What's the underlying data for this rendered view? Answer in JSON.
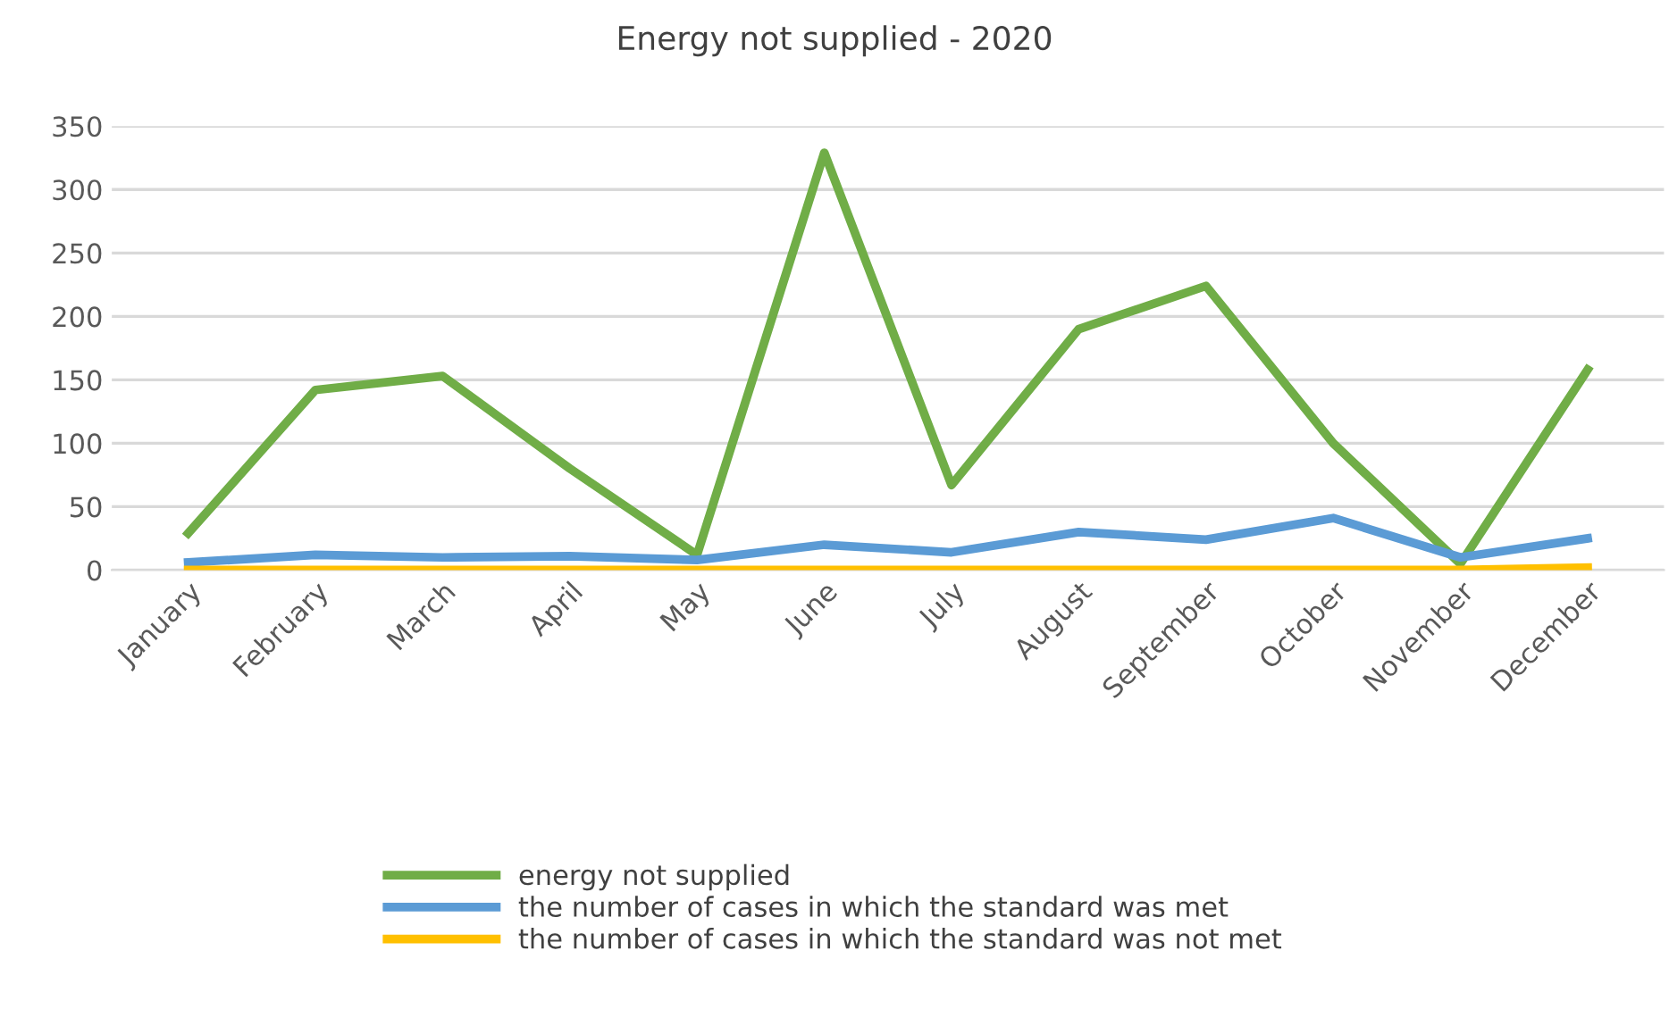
{
  "chart_data": {
    "type": "line",
    "title": "Energy not supplied - 2020",
    "categories": [
      "January",
      "February",
      "March",
      "April",
      "May",
      "June",
      "July",
      "August",
      "September",
      "October",
      "November",
      "December"
    ],
    "series": [
      {
        "name": "energy not supplied",
        "color": "#70ad47",
        "values": [
          29,
          142,
          153,
          80,
          12,
          329,
          67,
          190,
          224,
          100,
          5,
          158
        ]
      },
      {
        "name": "the number of cases in which the standard was met",
        "color": "#5b9bd5",
        "values": [
          6,
          12,
          10,
          11,
          8,
          20,
          14,
          30,
          24,
          41,
          10,
          25
        ]
      },
      {
        "name": "the number of cases in which the standard was not met",
        "color": "#ffc000",
        "values": [
          0,
          0,
          0,
          0,
          0,
          0,
          0,
          0,
          0,
          0,
          0,
          2
        ]
      }
    ],
    "ylim": [
      0,
      350
    ],
    "yticks": [
      0,
      50,
      100,
      150,
      200,
      250,
      300,
      350
    ],
    "grid": "y",
    "legend": "bottom",
    "marker": "none",
    "line_style": "solid"
  }
}
